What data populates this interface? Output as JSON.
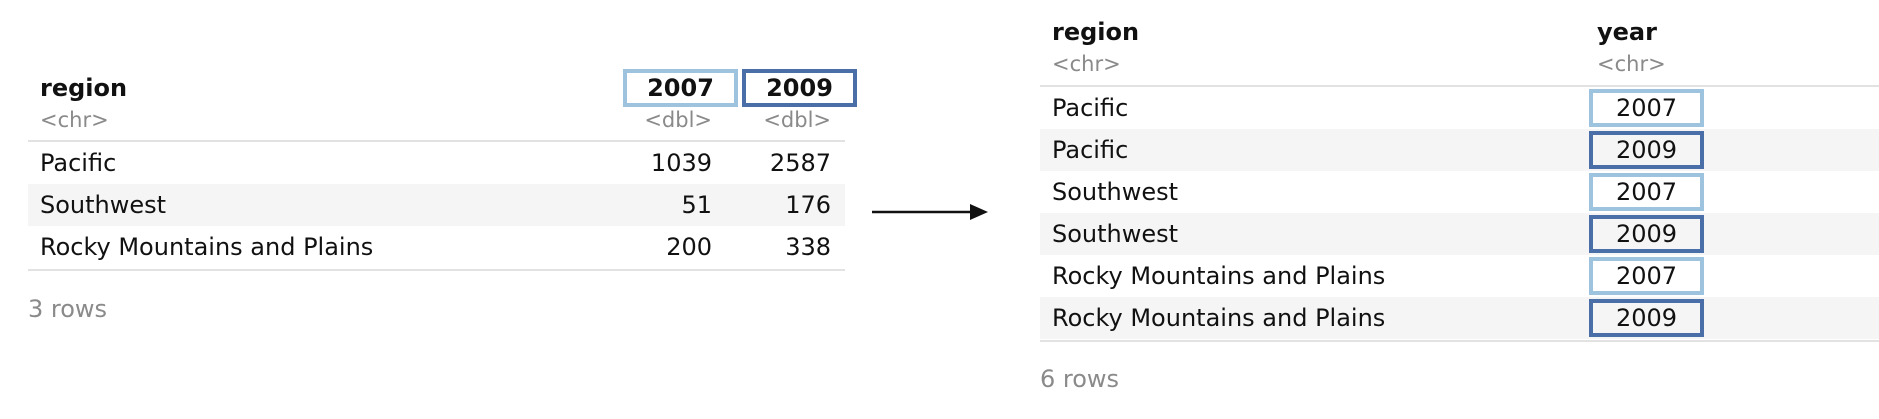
{
  "colors": {
    "light_highlight": "#9dc3df",
    "dark_highlight": "#4a6fa8",
    "type_text": "#8a8a8a"
  },
  "wide_table": {
    "columns": [
      {
        "name": "region",
        "type": "<chr>"
      },
      {
        "name": "2007",
        "type": "<dbl>"
      },
      {
        "name": "2009",
        "type": "<dbl>"
      }
    ],
    "rows": [
      {
        "region": "Pacific",
        "v2007": "1039",
        "v2009": "2587"
      },
      {
        "region": "Southwest",
        "v2007": "51",
        "v2009": "176"
      },
      {
        "region": "Rocky Mountains and Plains",
        "v2007": "200",
        "v2009": "338"
      }
    ],
    "footer": "3 rows"
  },
  "long_table": {
    "columns": [
      {
        "name": "region",
        "type": "<chr>"
      },
      {
        "name": "year",
        "type": "<chr>"
      }
    ],
    "rows": [
      {
        "region": "Pacific",
        "year": "2007"
      },
      {
        "region": "Pacific",
        "year": "2009"
      },
      {
        "region": "Southwest",
        "year": "2007"
      },
      {
        "region": "Southwest",
        "year": "2009"
      },
      {
        "region": "Rocky Mountains and Plains",
        "year": "2007"
      },
      {
        "region": "Rocky Mountains and Plains",
        "year": "2009"
      }
    ],
    "footer": "6 rows"
  }
}
